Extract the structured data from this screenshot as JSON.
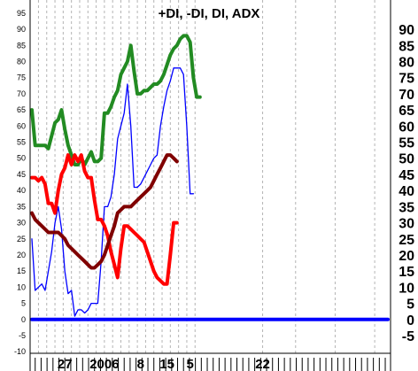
{
  "chart_data": {
    "type": "line",
    "title": "+DI, -DI, DI, ADX",
    "y_axis": {
      "left_ticks": [
        95,
        90,
        85,
        80,
        75,
        70,
        65,
        60,
        55,
        50,
        45,
        40,
        35,
        30,
        25,
        20,
        15,
        10,
        5,
        0,
        -5,
        -10
      ],
      "right_ticks": [
        90,
        85,
        80,
        75,
        70,
        65,
        60,
        55,
        50,
        45,
        40,
        35,
        30,
        25,
        20,
        15,
        10,
        5,
        0,
        -5
      ],
      "range": [
        -10.5,
        98
      ]
    },
    "x_axis": {
      "range": [
        0,
        108
      ],
      "tick_labels": [
        {
          "x": 10,
          "label": "27"
        },
        {
          "x": 22,
          "label": "2006"
        },
        {
          "x": 33,
          "label": "8"
        },
        {
          "x": 41,
          "label": "15"
        },
        {
          "x": 48,
          "label": "5"
        },
        {
          "x": 70,
          "label": "22"
        }
      ]
    },
    "grid": "vertical-dashed",
    "series": [
      {
        "color": "#228b22",
        "points": [
          [
            0,
            65
          ],
          [
            1,
            54
          ],
          [
            2,
            54
          ],
          [
            4,
            54
          ],
          [
            5,
            53
          ],
          [
            7,
            61
          ],
          [
            8,
            62
          ],
          [
            9,
            65
          ],
          [
            10,
            59
          ],
          [
            11,
            54
          ],
          [
            12,
            51
          ],
          [
            13,
            48
          ],
          [
            14,
            48
          ],
          [
            15,
            50
          ],
          [
            16,
            48
          ],
          [
            17,
            50
          ],
          [
            18,
            52
          ],
          [
            19,
            49
          ],
          [
            20,
            49
          ],
          [
            21,
            50
          ],
          [
            22,
            64
          ],
          [
            23,
            64
          ],
          [
            24,
            66
          ],
          [
            25,
            69
          ],
          [
            26,
            71
          ],
          [
            27,
            76
          ],
          [
            28,
            78
          ],
          [
            29,
            80
          ],
          [
            30,
            85
          ],
          [
            31,
            77
          ],
          [
            32,
            70
          ],
          [
            33,
            70
          ],
          [
            34,
            71
          ],
          [
            35,
            71
          ],
          [
            36,
            72
          ],
          [
            37,
            73
          ],
          [
            38,
            73
          ],
          [
            39,
            74
          ],
          [
            40,
            76
          ],
          [
            41,
            79
          ],
          [
            42,
            82
          ],
          [
            43,
            84
          ],
          [
            44,
            85
          ],
          [
            45,
            87
          ],
          [
            46,
            88
          ],
          [
            47,
            88
          ],
          [
            48,
            86
          ],
          [
            49,
            75
          ],
          [
            50,
            69
          ],
          [
            51,
            69
          ]
        ]
      },
      {
        "color": "#0000ff",
        "points": [
          [
            0,
            25
          ],
          [
            1,
            9
          ],
          [
            3,
            11
          ],
          [
            4,
            9
          ],
          [
            5,
            15
          ],
          [
            6,
            21
          ],
          [
            7,
            30
          ],
          [
            8,
            35
          ],
          [
            9,
            28
          ],
          [
            10,
            15
          ],
          [
            11,
            8
          ],
          [
            12,
            9
          ],
          [
            13,
            1
          ],
          [
            14,
            3
          ],
          [
            15,
            3
          ],
          [
            16,
            2
          ],
          [
            17,
            3
          ],
          [
            18,
            5
          ],
          [
            19,
            5
          ],
          [
            20,
            5
          ],
          [
            21,
            18
          ],
          [
            22,
            35
          ],
          [
            23,
            35
          ],
          [
            24,
            38
          ],
          [
            25,
            45
          ],
          [
            26,
            56
          ],
          [
            27,
            60
          ],
          [
            28,
            64
          ],
          [
            29,
            73
          ],
          [
            30,
            60
          ],
          [
            31,
            41
          ],
          [
            32,
            41
          ],
          [
            33,
            42
          ],
          [
            34,
            44
          ],
          [
            35,
            46
          ],
          [
            36,
            48
          ],
          [
            37,
            50
          ],
          [
            38,
            51
          ],
          [
            39,
            60
          ],
          [
            40,
            66
          ],
          [
            41,
            71
          ],
          [
            42,
            74
          ],
          [
            43,
            78
          ],
          [
            44,
            78
          ],
          [
            45,
            78
          ],
          [
            46,
            76
          ],
          [
            47,
            60
          ],
          [
            48,
            39
          ],
          [
            49,
            39
          ]
        ]
      },
      {
        "color": "#ff0000",
        "points": [
          [
            0,
            44
          ],
          [
            1,
            44
          ],
          [
            2,
            43
          ],
          [
            3,
            44
          ],
          [
            4,
            42
          ],
          [
            5,
            36
          ],
          [
            6,
            36
          ],
          [
            7,
            33
          ],
          [
            8,
            40
          ],
          [
            9,
            45
          ],
          [
            10,
            47
          ],
          [
            11,
            51
          ],
          [
            12,
            48
          ],
          [
            13,
            51
          ],
          [
            14,
            49
          ],
          [
            15,
            51
          ],
          [
            16,
            46
          ],
          [
            17,
            44
          ],
          [
            18,
            44
          ],
          [
            19,
            37
          ],
          [
            20,
            31
          ],
          [
            21,
            31
          ],
          [
            22,
            29
          ],
          [
            23,
            26
          ],
          [
            24,
            21
          ],
          [
            25,
            17
          ],
          [
            26,
            13
          ],
          [
            27,
            22
          ],
          [
            28,
            29
          ],
          [
            29,
            29
          ],
          [
            30,
            28
          ],
          [
            31,
            27
          ],
          [
            32,
            26
          ],
          [
            33,
            25
          ],
          [
            34,
            24
          ],
          [
            35,
            21
          ],
          [
            36,
            18
          ],
          [
            37,
            15
          ],
          [
            38,
            13
          ],
          [
            39,
            12
          ],
          [
            40,
            11
          ],
          [
            41,
            11
          ],
          [
            42,
            20
          ],
          [
            43,
            30
          ],
          [
            44,
            30
          ]
        ]
      },
      {
        "color": "#800000",
        "points": [
          [
            0,
            33
          ],
          [
            1,
            31
          ],
          [
            2,
            30
          ],
          [
            4,
            28
          ],
          [
            5,
            27
          ],
          [
            7,
            27
          ],
          [
            8,
            27
          ],
          [
            9,
            26
          ],
          [
            10,
            25
          ],
          [
            11,
            23
          ],
          [
            12,
            22
          ],
          [
            13,
            21
          ],
          [
            14,
            20
          ],
          [
            15,
            19
          ],
          [
            16,
            18
          ],
          [
            17,
            17
          ],
          [
            18,
            16
          ],
          [
            19,
            16
          ],
          [
            20,
            17
          ],
          [
            21,
            18
          ],
          [
            22,
            20
          ],
          [
            23,
            23
          ],
          [
            24,
            26
          ],
          [
            25,
            29
          ],
          [
            26,
            33
          ],
          [
            27,
            34
          ],
          [
            28,
            35
          ],
          [
            29,
            35
          ],
          [
            30,
            35
          ],
          [
            31,
            36
          ],
          [
            32,
            37
          ],
          [
            33,
            38
          ],
          [
            34,
            39
          ],
          [
            35,
            40
          ],
          [
            36,
            41
          ],
          [
            37,
            43
          ],
          [
            38,
            45
          ],
          [
            39,
            47
          ],
          [
            40,
            49
          ],
          [
            41,
            51
          ],
          [
            42,
            51
          ],
          [
            43,
            50
          ],
          [
            44,
            49
          ]
        ]
      },
      {
        "color": "#0000ff",
        "points": [
          [
            0,
            0
          ],
          [
            108,
            0
          ]
        ]
      }
    ]
  }
}
